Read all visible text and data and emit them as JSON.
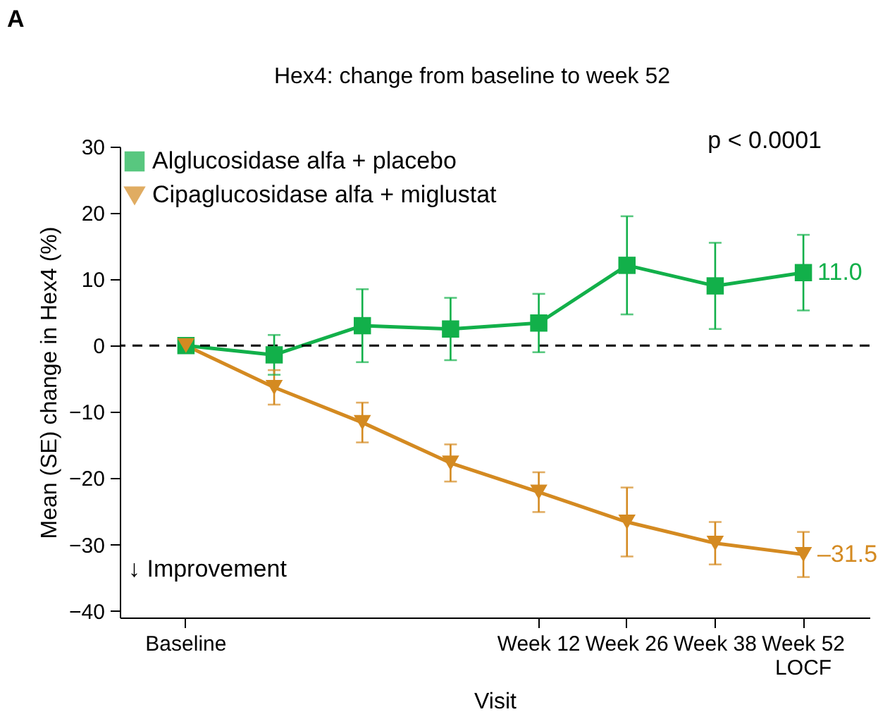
{
  "chart_data": {
    "type": "line",
    "title": "Hex4: change from baseline to week 52",
    "xlabel": "Visit",
    "ylabel": "Mean (SE) change in Hex4 (%)",
    "categories": [
      "Baseline",
      null,
      null,
      null,
      "Week 12",
      "Week 26",
      "Week 38",
      "Week 52\nLOCF"
    ],
    "ylim": [
      -41,
      30
    ],
    "yticks": [
      -40,
      -30,
      -20,
      -10,
      0,
      10,
      20,
      30
    ],
    "series": [
      {
        "name": "Alglucosidase alfa + placebo",
        "color": "#12b04a",
        "marker": "square",
        "values": [
          0,
          -1.4,
          3.0,
          2.5,
          3.4,
          12.1,
          9.0,
          11.0
        ],
        "errors": [
          null,
          3,
          5.5,
          4.7,
          4.4,
          7.4,
          6.5,
          5.7
        ],
        "value_labels": [
          null,
          null,
          null,
          null,
          null,
          null,
          null,
          "11.0"
        ]
      },
      {
        "name": "Cipaglucosidase alfa + miglustat",
        "color": "#d48a21",
        "marker": "triangle",
        "values": [
          0,
          -6.3,
          -11.6,
          -17.7,
          -22.1,
          -26.6,
          -29.8,
          -31.5
        ],
        "errors": [
          null,
          2.6,
          3,
          2.8,
          3,
          5.2,
          3.2,
          3.4
        ],
        "value_labels": [
          null,
          null,
          null,
          null,
          null,
          null,
          null,
          "–31.5"
        ]
      }
    ],
    "ref_lines": [
      {
        "axis": "y",
        "value": 0,
        "color": "#000000",
        "line_style": "dashed"
      }
    ],
    "annotations": [
      "A",
      "p < 0.0001",
      "↓ Improvement"
    ],
    "legend": "top left",
    "grid": false
  }
}
